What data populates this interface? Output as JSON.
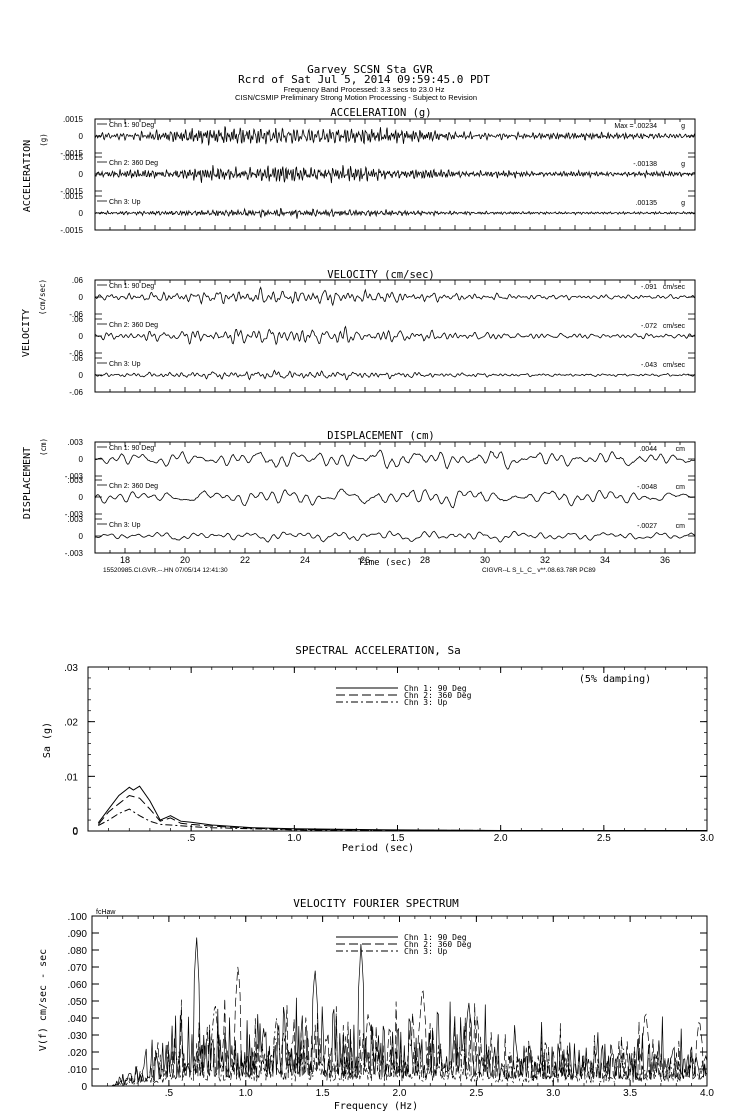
{
  "header": {
    "line1": "Garvey    SCSN Sta GVR",
    "line2": "Rcrd of Sat Jul  5, 2014 09:59:45.0 PDT",
    "line3": "Frequency Band Processed: 3.3 secs to 23.0 Hz",
    "line4": "CISN/CSMIP Preliminary Strong Motion Processing - Subject to Revision"
  },
  "colors": {
    "ink": "#000000",
    "background": "#ffffff"
  },
  "chart_data": [
    {
      "type": "line",
      "title": "ACCELERATION (g)",
      "ylabel": "ACCELERATION",
      "yunit": "(g)",
      "xlim": [
        17,
        37
      ],
      "ylim": [
        -0.0015,
        0.0015
      ],
      "ytick_labels": [
        ".0015",
        "0",
        "-.0015"
      ],
      "max_prefix": "Max =",
      "unit_label": "g",
      "series": [
        {
          "name": "Chn 1: 90 Deg",
          "peak": ".00234",
          "amplitude": 0.00085,
          "seed": 11
        },
        {
          "name": "Chn 2: 360 Deg",
          "peak": "-.00138",
          "amplitude": 0.0008,
          "seed": 23
        },
        {
          "name": "Chn 3: Up",
          "peak": ".00135",
          "amplitude": 0.0005,
          "seed": 37
        }
      ]
    },
    {
      "type": "line",
      "title": "VELOCITY (cm/sec)",
      "ylabel": "VELOCITY",
      "yunit": "(cm/sec)",
      "xlim": [
        17,
        37
      ],
      "ylim": [
        -0.06,
        0.06
      ],
      "ytick_labels": [
        ".06",
        "0",
        "-.06"
      ],
      "unit_label": "cm/sec",
      "series": [
        {
          "name": "Chn 1: 90 Deg",
          "peak": "-.091",
          "amplitude": 0.034,
          "seed": 51
        },
        {
          "name": "Chn 2: 360 Deg",
          "peak": "-.072",
          "amplitude": 0.033,
          "seed": 63
        },
        {
          "name": "Chn 3: Up",
          "peak": "-.043",
          "amplitude": 0.017,
          "seed": 77
        }
      ]
    },
    {
      "type": "line",
      "title": "DISPLACEMENT (cm)",
      "ylabel": "DISPLACEMENT",
      "yunit": "(cm)",
      "xlabel": "Time (sec)",
      "xlim": [
        17,
        37
      ],
      "ylim": [
        -0.003,
        0.003
      ],
      "ytick_labels": [
        ".003",
        "0",
        "-.003"
      ],
      "xticks": [
        18,
        20,
        22,
        24,
        26,
        28,
        30,
        32,
        34,
        36
      ],
      "unit_label": "cm",
      "footer_left": "15520985.CI.GVR.--.HN 07/05/14 12:41:30",
      "footer_right": "CIGVR--L  S_L_C_  v**.08.63.78R PC89",
      "series": [
        {
          "name": "Chn 1: 90 Deg",
          "peak": ".0044",
          "amplitude": 0.0018,
          "seed": 91
        },
        {
          "name": "Chn 2: 360 Deg",
          "peak": "-.0048",
          "amplitude": 0.0019,
          "seed": 103
        },
        {
          "name": "Chn 3: Up",
          "peak": "-.0027",
          "amplitude": 0.0011,
          "seed": 117
        }
      ]
    },
    {
      "type": "line",
      "title": "SPECTRAL ACCELERATION, Sa",
      "xlabel": "Period (sec)",
      "ylabel": "Sa (g)",
      "xlim": [
        0,
        3.0
      ],
      "ylim": [
        0,
        0.03
      ],
      "xtick_labels": [
        ".5",
        "1.0",
        "1.5",
        "2.0",
        "2.5",
        "3.0"
      ],
      "ytick_labels": [
        "0",
        ".01",
        ".02",
        ".03"
      ],
      "annotation": "(5% damping)",
      "series": [
        {
          "name": "Chn 1: 90 Deg",
          "dash": "",
          "x": [
            0.05,
            0.1,
            0.15,
            0.2,
            0.22,
            0.25,
            0.3,
            0.35,
            0.4,
            0.45,
            0.5,
            0.6,
            0.8,
            1.0,
            1.5,
            2.0,
            2.5,
            3.0
          ],
          "y": [
            0.0015,
            0.004,
            0.0065,
            0.008,
            0.0075,
            0.0082,
            0.0055,
            0.002,
            0.0028,
            0.0018,
            0.0016,
            0.0011,
            0.0006,
            0.0004,
            0.0002,
            0.0001,
            0.0001,
            0.0001
          ]
        },
        {
          "name": "Chn 2: 360 Deg",
          "dash": "9,4",
          "x": [
            0.05,
            0.1,
            0.15,
            0.2,
            0.25,
            0.3,
            0.35,
            0.4,
            0.45,
            0.5,
            0.6,
            0.8,
            1.0,
            1.5,
            2.0,
            2.5,
            3.0
          ],
          "y": [
            0.0012,
            0.0035,
            0.005,
            0.0065,
            0.006,
            0.004,
            0.0018,
            0.0024,
            0.0014,
            0.0012,
            0.0009,
            0.0005,
            0.0003,
            0.00015,
            0.0001,
            0.0001,
            0.0001
          ]
        },
        {
          "name": "Chn 3: Up",
          "dash": "7,3,2,3",
          "x": [
            0.05,
            0.1,
            0.15,
            0.2,
            0.25,
            0.3,
            0.35,
            0.4,
            0.5,
            0.6,
            0.8,
            1.0,
            1.5,
            2.0,
            2.5,
            3.0
          ],
          "y": [
            0.001,
            0.002,
            0.0032,
            0.004,
            0.0028,
            0.0018,
            0.0012,
            0.0011,
            0.0008,
            0.0006,
            0.0004,
            0.0002,
            0.0001,
            0.0001,
            0.0001,
            0.0001
          ]
        }
      ]
    },
    {
      "type": "line",
      "title": "VELOCITY FOURIER SPECTRUM",
      "xlabel": "Frequency (Hz)",
      "ylabel": "V(f)  cm/sec - sec",
      "corner_label": "fcHaw",
      "xlim": [
        0,
        4.0
      ],
      "ylim": [
        0,
        0.1
      ],
      "xtick_labels": [
        ".5",
        "1.0",
        "1.5",
        "2.0",
        "2.5",
        "3.0",
        "3.5",
        "4.0"
      ],
      "ytick_labels": [
        "0",
        ".010",
        ".020",
        ".030",
        ".040",
        ".050",
        ".060",
        ".070",
        ".080",
        ".090",
        ".100"
      ],
      "series": [
        {
          "name": "Chn 1: 90 Deg",
          "dash": "",
          "level": 0.032,
          "seed": 131,
          "peaks": [
            [
              0.68,
              0.089
            ],
            [
              1.75,
              0.085
            ],
            [
              1.45,
              0.07
            ],
            [
              2.45,
              0.05
            ]
          ]
        },
        {
          "name": "Chn 2: 360 Deg",
          "dash": "9,4",
          "level": 0.03,
          "seed": 149,
          "peaks": [
            [
              0.95,
              0.073
            ],
            [
              2.15,
              0.06
            ],
            [
              3.6,
              0.045
            ],
            [
              3.95,
              0.04
            ]
          ]
        },
        {
          "name": "Chn 3: Up",
          "dash": "7,3,2,3",
          "level": 0.018,
          "seed": 167,
          "peaks": [
            [
              0.8,
              0.05
            ],
            [
              1.2,
              0.04
            ]
          ]
        }
      ]
    }
  ]
}
